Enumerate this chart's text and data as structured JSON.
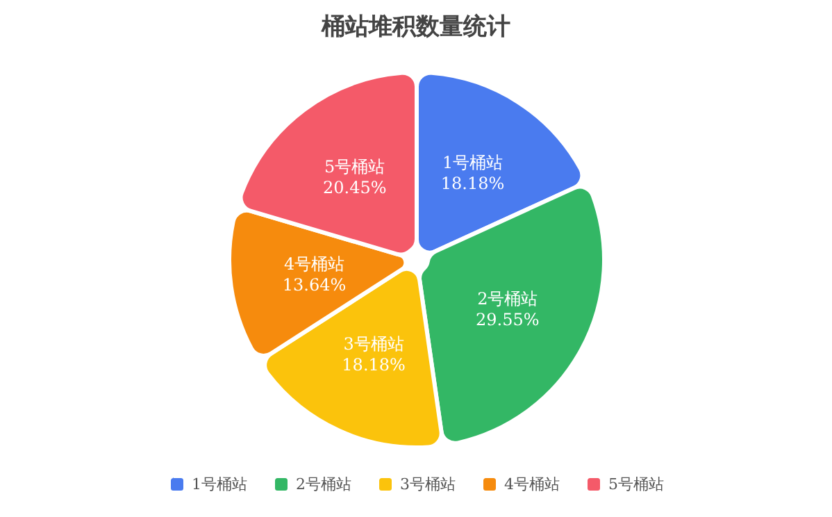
{
  "chart_data": {
    "type": "pie",
    "title": "桶站堆积数量统计",
    "categories": [
      "1号桶站",
      "2号桶站",
      "3号桶站",
      "4号桶站",
      "5号桶站"
    ],
    "values": [
      18.18,
      29.55,
      18.18,
      13.64,
      20.45
    ],
    "value_labels": [
      "18.18%",
      "29.55%",
      "18.18%",
      "13.64%",
      "20.45%"
    ],
    "colors": [
      "#4a7bef",
      "#33b765",
      "#fbc30c",
      "#f68b0d",
      "#f45a69"
    ],
    "legend": "bottom"
  }
}
